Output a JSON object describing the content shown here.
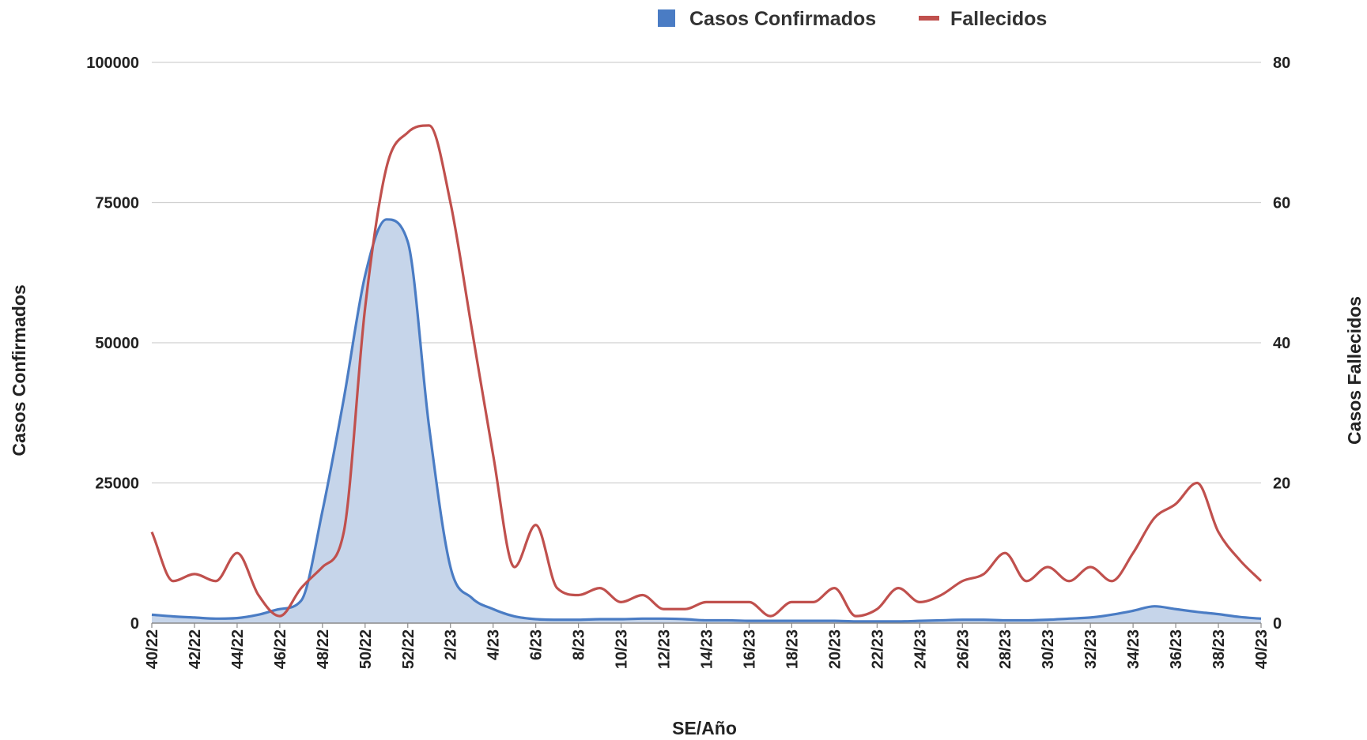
{
  "chart_data": {
    "type": "area+line",
    "title": "",
    "xlabel": "SE/Año",
    "ylabel_left": "Casos Confirmados",
    "ylabel_right": "Casos Fallecidos",
    "ylim_left": [
      0,
      100000
    ],
    "ylim_right": [
      0,
      80
    ],
    "yticks_left": [
      0,
      25000,
      50000,
      75000,
      100000
    ],
    "yticks_right": [
      0,
      20,
      40,
      60,
      80
    ],
    "grid": true,
    "legend_position": "top",
    "x": [
      "40/22",
      "41/22",
      "42/22",
      "43/22",
      "44/22",
      "45/22",
      "46/22",
      "47/22",
      "48/22",
      "49/22",
      "50/22",
      "51/22",
      "52/22",
      "1/23",
      "2/23",
      "3/23",
      "4/23",
      "5/23",
      "6/23",
      "7/23",
      "8/23",
      "9/23",
      "10/23",
      "11/23",
      "12/23",
      "13/23",
      "14/23",
      "15/23",
      "16/23",
      "17/23",
      "18/23",
      "19/23",
      "20/23",
      "21/23",
      "22/23",
      "23/23",
      "24/23",
      "25/23",
      "26/23",
      "27/23",
      "28/23",
      "29/23",
      "30/23",
      "31/23",
      "32/23",
      "33/23",
      "34/23",
      "35/23",
      "36/23",
      "37/23",
      "38/23",
      "39/23",
      "40/23"
    ],
    "x_tick_labels": [
      "40/22",
      "42/22",
      "44/22",
      "46/22",
      "48/22",
      "50/22",
      "52/22",
      "2/23",
      "4/23",
      "6/23",
      "8/23",
      "10/23",
      "12/23",
      "14/23",
      "16/23",
      "18/23",
      "20/23",
      "22/23",
      "24/23",
      "26/23",
      "28/23",
      "30/23",
      "32/23",
      "34/23",
      "36/23",
      "38/23",
      "40/23"
    ],
    "series": [
      {
        "name": "Casos Confirmados",
        "axis": "left",
        "style": "area",
        "color": "#4a7cc4",
        "fill": "#c6d5ea",
        "values": [
          1500,
          1200,
          1000,
          800,
          900,
          1500,
          2500,
          4000,
          20000,
          40000,
          62000,
          72000,
          68000,
          35000,
          10000,
          4500,
          2500,
          1200,
          700,
          600,
          600,
          700,
          700,
          800,
          800,
          700,
          500,
          500,
          400,
          400,
          400,
          400,
          400,
          300,
          300,
          300,
          400,
          500,
          600,
          600,
          500,
          500,
          600,
          800,
          1000,
          1500,
          2200,
          3000,
          2500,
          2000,
          1600,
          1100,
          800
        ]
      },
      {
        "name": "Fallecidos",
        "axis": "right",
        "style": "line",
        "color": "#c0504d",
        "values": [
          13,
          6,
          7,
          6,
          10,
          4,
          1,
          5,
          8,
          13,
          45,
          65,
          70,
          71,
          60,
          42,
          24,
          8,
          14,
          5,
          4,
          5,
          3,
          4,
          2,
          2,
          3,
          3,
          3,
          1,
          3,
          3,
          5,
          1,
          2,
          5,
          3,
          4,
          6,
          7,
          10,
          6,
          8,
          6,
          8,
          6,
          10,
          15,
          17,
          20,
          13,
          9,
          6
        ]
      }
    ]
  }
}
